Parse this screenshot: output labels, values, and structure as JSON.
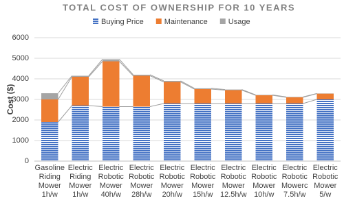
{
  "chart_data": {
    "type": "stacked-bar",
    "title": "TOTAL COST OF OWNERSHIP FOR 10 YEARS",
    "y_label": "Cost ($)",
    "categories": [
      "Gasoline\nRiding\nMower\n1h/w",
      "Electric\nRiding\nMower\n1h/w",
      "Electric\nRobotic\nMower\n40h/w",
      "Electric\nRobotic\nMower\n28h/w",
      "Electric\nRobotic\nMower\n20h/w",
      "Electric\nRobotic\nMower\n15h/w",
      "Electric\nRobotic\nMower\n12.5h/w",
      "Electric\nRobotic\nMower\n10h/w",
      "Electric\nRobotic\nMowerc\n7.5h/w",
      "Electric\nRobotic\nMower\n5/w"
    ],
    "series": [
      {
        "name": "Buying Price",
        "color": "#4472c4",
        "values": [
          1900,
          2700,
          2650,
          2650,
          2800,
          2800,
          2800,
          2800,
          2800,
          3000
        ]
      },
      {
        "name": "Maintenance",
        "color": "#ed7d31",
        "values": [
          1100,
          1400,
          2200,
          1500,
          1050,
          700,
          650,
          400,
          300,
          280
        ]
      },
      {
        "name": "Usage",
        "color": "#a5a5a5",
        "values": [
          300,
          50,
          100,
          50,
          50,
          40,
          30,
          20,
          20,
          10
        ]
      }
    ],
    "ylim": [
      0,
      6000
    ],
    "yticks": [
      0,
      1000,
      2000,
      3000,
      4000,
      5000,
      6000
    ],
    "grid": true,
    "legend": "top"
  }
}
